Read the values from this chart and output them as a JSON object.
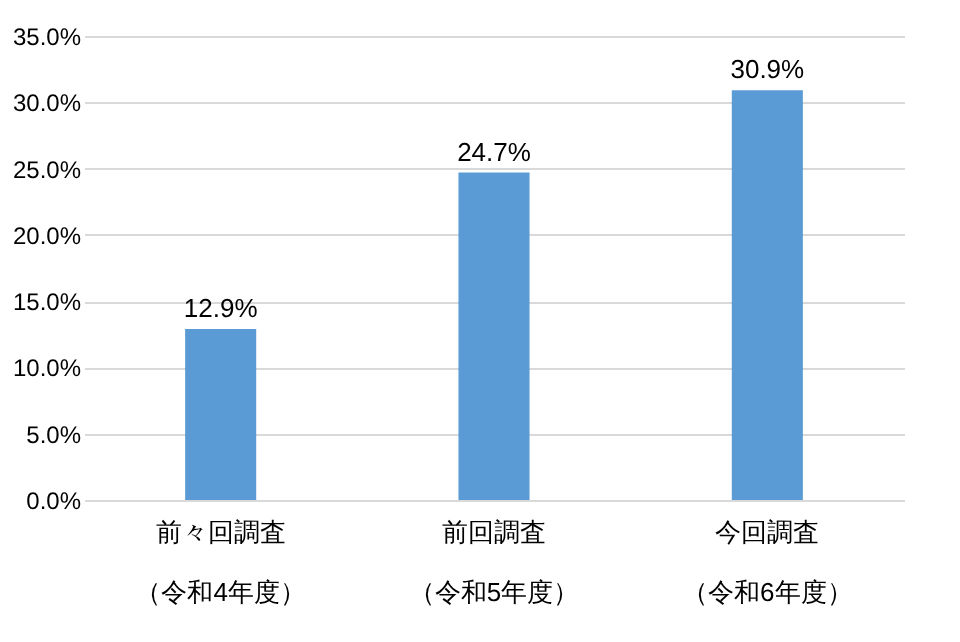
{
  "chart_data": {
    "type": "bar",
    "categories": [
      "前々回調査（令和4年度）",
      "前回調査（令和5年度）",
      "今回調査（令和6年度）"
    ],
    "values": [
      12.9,
      24.7,
      30.9
    ],
    "value_labels": [
      "12.9%",
      "24.7%",
      "30.9%"
    ],
    "color": "#5b9bd5",
    "ylim": [
      0,
      35
    ],
    "yticks": [
      {
        "value": 0,
        "label": "0.0%"
      },
      {
        "value": 5,
        "label": "5.0%"
      },
      {
        "value": 10,
        "label": "10.0%"
      },
      {
        "value": 15,
        "label": "15.0%"
      },
      {
        "value": 20,
        "label": "20.0%"
      },
      {
        "value": 25,
        "label": "25.0%"
      },
      {
        "value": 30,
        "label": "30.0%"
      },
      {
        "value": 35,
        "label": "35.0%"
      }
    ],
    "grid": "y"
  }
}
